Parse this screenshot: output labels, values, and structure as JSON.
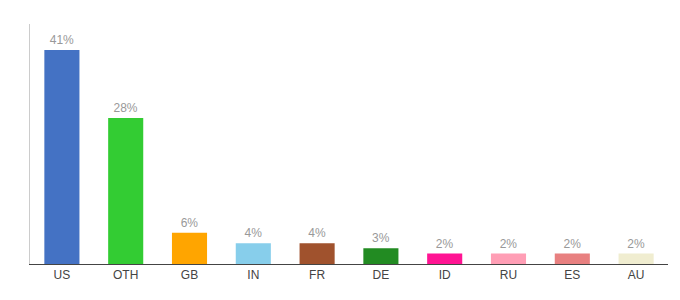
{
  "chart_data": {
    "type": "bar",
    "categories": [
      "US",
      "OTH",
      "GB",
      "IN",
      "FR",
      "DE",
      "ID",
      "RU",
      "ES",
      "AU"
    ],
    "values": [
      41,
      28,
      6,
      4,
      4,
      3,
      2,
      2,
      2,
      2
    ],
    "value_labels": [
      "41%",
      "28%",
      "6%",
      "4%",
      "4%",
      "3%",
      "2%",
      "2%",
      "2%",
      "2%"
    ],
    "data_labels": true,
    "colors": [
      "#4472C4",
      "#33CC33",
      "#FFA500",
      "#87CEEB",
      "#A0522D",
      "#228B22",
      "#FF1493",
      "#FF9EB5",
      "#E88080",
      "#F0EDD0"
    ],
    "ylim": [
      0,
      46
    ],
    "tick_labels": "x",
    "grid": false
  }
}
